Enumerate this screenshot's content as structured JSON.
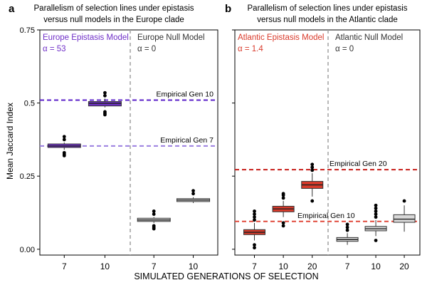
{
  "figure": {
    "xlabel": "SIMULATED GENERATIONS OF SELECTION",
    "ylabel": "Mean Jaccard Index"
  },
  "chart_data": [
    {
      "type": "boxplot",
      "panel_label": "a",
      "title": "Parallelism of selection lines under epistasis versus null models in the Europe clade",
      "title_lines": [
        "Parallelism of selection lines under epistasis",
        "versus null models in the Europe clade"
      ],
      "ylabel": "Mean Jaccard Index",
      "ylim": [
        -0.02,
        0.75
      ],
      "yticks": [
        "0.00",
        "0.25",
        "0.5",
        "0.75"
      ],
      "yticks_values": [
        0.0,
        0.25,
        0.5,
        0.75
      ],
      "groups": [
        {
          "name": "Europe Epistasis Model",
          "alpha_label": "α = 53",
          "color": "#7030c8",
          "boxes": [
            {
              "category": "7",
              "min": 0.34,
              "q1": 0.348,
              "median": 0.353,
              "q3": 0.36,
              "max": 0.365,
              "outliers": [
                0.32,
                0.325,
                0.33,
                0.375,
                0.385
              ]
            },
            {
              "category": "10",
              "min": 0.485,
              "q1": 0.49,
              "median": 0.499,
              "q3": 0.505,
              "max": 0.515,
              "outliers": [
                0.46,
                0.465,
                0.47,
                0.525,
                0.535
              ]
            }
          ]
        },
        {
          "name": "Europe Null Model",
          "alpha_label": "α = 0",
          "color": "#d9d9d9",
          "boxes": [
            {
              "category": "7",
              "min": 0.09,
              "q1": 0.095,
              "median": 0.1,
              "q3": 0.106,
              "max": 0.11,
              "outliers": [
                0.07,
                0.075,
                0.08,
                0.12,
                0.13
              ]
            },
            {
              "category": "10",
              "min": 0.158,
              "q1": 0.163,
              "median": 0.168,
              "q3": 0.173,
              "max": 0.178,
              "outliers": [
                0.19,
                0.2
              ]
            }
          ]
        }
      ],
      "reference_lines": [
        {
          "label": "Empirical Gen 10",
          "value": 0.51,
          "color": "#5a1fc8"
        },
        {
          "label": "Empirical Gen 7",
          "value": 0.353,
          "color": "#9b7fe0"
        }
      ]
    },
    {
      "type": "boxplot",
      "panel_label": "b",
      "title": "Parallelism of selection lines under epistasis versus null models in the Atlantic clade",
      "title_lines": [
        "Parallelism of selection lines under epistasis",
        "versus null models in the Atlantic clade"
      ],
      "ylim": [
        -0.02,
        0.75
      ],
      "groups": [
        {
          "name": "Atlantic Epistasis Model",
          "alpha_label": "α = 1.4",
          "color": "#d93a2b",
          "boxes": [
            {
              "category": "7",
              "min": 0.03,
              "q1": 0.05,
              "median": 0.058,
              "q3": 0.067,
              "max": 0.09,
              "outliers": [
                0.005,
                0.015,
                0.1,
                0.11,
                0.12,
                0.13
              ]
            },
            {
              "category": "10",
              "min": 0.11,
              "q1": 0.128,
              "median": 0.138,
              "q3": 0.147,
              "max": 0.165,
              "outliers": [
                0.08,
                0.09,
                0.175,
                0.185,
                0.19
              ]
            },
            {
              "category": "20",
              "min": 0.18,
              "q1": 0.208,
              "median": 0.22,
              "q3": 0.232,
              "max": 0.26,
              "outliers": [
                0.165,
                0.27,
                0.28,
                0.29
              ]
            }
          ]
        },
        {
          "name": "Atlantic Null Model",
          "alpha_label": "α = 0",
          "color": "#d9d9d9",
          "boxes": [
            {
              "category": "7",
              "min": 0.015,
              "q1": 0.027,
              "median": 0.033,
              "q3": 0.04,
              "max": 0.055,
              "outliers": [
                0.065,
                0.075,
                0.085
              ]
            },
            {
              "category": "10",
              "min": 0.045,
              "q1": 0.063,
              "median": 0.07,
              "q3": 0.078,
              "max": 0.1,
              "outliers": [
                0.03,
                0.11,
                0.12,
                0.13,
                0.14,
                0.15
              ]
            },
            {
              "category": "20",
              "min": 0.06,
              "q1": 0.092,
              "median": 0.103,
              "q3": 0.118,
              "max": 0.15,
              "outliers": [
                0.165
              ]
            }
          ]
        }
      ],
      "reference_lines": [
        {
          "label": "Empirical Gen 20",
          "value": 0.272,
          "color": "#c8211c"
        },
        {
          "label": "Empirical Gen 10",
          "value": 0.095,
          "color": "#e04a3c"
        }
      ]
    }
  ]
}
